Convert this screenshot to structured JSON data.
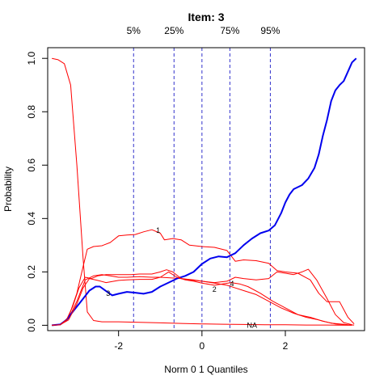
{
  "chart_data": {
    "type": "line",
    "title": "Item:  3",
    "xlabel": "Norm 0 1 Quantiles",
    "ylabel": "Probability",
    "xlim": [
      -3.7,
      3.9
    ],
    "ylim": [
      -0.02,
      1.04
    ],
    "xticks": [
      -2,
      0,
      2
    ],
    "yticks": [
      0.0,
      0.2,
      0.4,
      0.6,
      0.8,
      1.0
    ],
    "grid": false,
    "quantile_lines": [
      {
        "label": "5%",
        "x": -1.64,
        "color": "#3333cc"
      },
      {
        "label": "25%",
        "x": -0.67,
        "color": "#3333cc"
      },
      {
        "label": "",
        "x": 0.0,
        "color": "#3333cc"
      },
      {
        "label": "75%",
        "x": 0.67,
        "color": "#3333cc"
      },
      {
        "label": "95%",
        "x": 1.64,
        "color": "#3333cc"
      }
    ],
    "series": [
      {
        "label": "NA",
        "label_pos": [
          1.2,
          0.0
        ],
        "color": "#ff0000",
        "width": 1,
        "points": [
          [
            -3.6,
            1.0
          ],
          [
            -3.45,
            0.995
          ],
          [
            -3.3,
            0.98
          ],
          [
            -3.15,
            0.9
          ],
          [
            -3.0,
            0.6
          ],
          [
            -2.85,
            0.25
          ],
          [
            -2.75,
            0.05
          ],
          [
            -2.6,
            0.018
          ],
          [
            -2.4,
            0.013
          ],
          [
            -2.0,
            0.013
          ],
          [
            -1.5,
            0.011
          ],
          [
            -1.0,
            0.009
          ],
          [
            -0.5,
            0.007
          ],
          [
            0.0,
            0.005
          ],
          [
            0.5,
            0.004
          ],
          [
            1.0,
            0.003
          ],
          [
            1.5,
            0.002
          ],
          [
            2.0,
            0.002
          ],
          [
            2.5,
            0.001
          ],
          [
            3.0,
            0.001
          ],
          [
            3.6,
            0.0
          ]
        ]
      },
      {
        "label": "1",
        "label_pos": [
          -1.05,
          0.355
        ],
        "color": "#ff0000",
        "width": 1,
        "points": [
          [
            -3.6,
            0.0
          ],
          [
            -3.4,
            0.002
          ],
          [
            -3.2,
            0.03
          ],
          [
            -3.0,
            0.12
          ],
          [
            -2.85,
            0.22
          ],
          [
            -2.75,
            0.285
          ],
          [
            -2.6,
            0.295
          ],
          [
            -2.4,
            0.298
          ],
          [
            -2.2,
            0.31
          ],
          [
            -2.0,
            0.335
          ],
          [
            -1.8,
            0.338
          ],
          [
            -1.6,
            0.34
          ],
          [
            -1.4,
            0.35
          ],
          [
            -1.2,
            0.358
          ],
          [
            -1.0,
            0.345
          ],
          [
            -0.9,
            0.32
          ],
          [
            -0.7,
            0.325
          ],
          [
            -0.5,
            0.32
          ],
          [
            -0.3,
            0.3
          ],
          [
            0.0,
            0.295
          ],
          [
            0.3,
            0.292
          ],
          [
            0.6,
            0.28
          ],
          [
            0.8,
            0.24
          ],
          [
            1.0,
            0.245
          ],
          [
            1.3,
            0.242
          ],
          [
            1.6,
            0.232
          ],
          [
            1.8,
            0.205
          ],
          [
            2.0,
            0.2
          ],
          [
            2.3,
            0.195
          ],
          [
            2.6,
            0.17
          ],
          [
            2.8,
            0.12
          ],
          [
            3.0,
            0.088
          ],
          [
            3.3,
            0.088
          ],
          [
            3.5,
            0.03
          ],
          [
            3.65,
            0.005
          ]
        ]
      },
      {
        "label": "2",
        "label_pos": [
          0.3,
          0.135
        ],
        "color": "#ff0000",
        "width": 1,
        "points": [
          [
            -3.6,
            0.0
          ],
          [
            -3.4,
            0.002
          ],
          [
            -3.2,
            0.025
          ],
          [
            -3.0,
            0.09
          ],
          [
            -2.8,
            0.17
          ],
          [
            -2.6,
            0.185
          ],
          [
            -2.4,
            0.19
          ],
          [
            -2.2,
            0.185
          ],
          [
            -2.0,
            0.18
          ],
          [
            -1.8,
            0.18
          ],
          [
            -1.5,
            0.182
          ],
          [
            -1.2,
            0.18
          ],
          [
            -1.0,
            0.18
          ],
          [
            -0.8,
            0.178
          ],
          [
            -0.5,
            0.175
          ],
          [
            -0.2,
            0.17
          ],
          [
            0.0,
            0.165
          ],
          [
            0.3,
            0.158
          ],
          [
            0.6,
            0.15
          ],
          [
            0.8,
            0.14
          ],
          [
            1.0,
            0.13
          ],
          [
            1.3,
            0.115
          ],
          [
            1.6,
            0.09
          ],
          [
            1.9,
            0.065
          ],
          [
            2.2,
            0.045
          ],
          [
            2.5,
            0.03
          ],
          [
            2.8,
            0.02
          ],
          [
            3.1,
            0.008
          ],
          [
            3.5,
            0.002
          ],
          [
            3.65,
            0.001
          ]
        ]
      },
      {
        "label": "3",
        "label_pos": [
          -2.25,
          0.12
        ],
        "color": "#0000ee",
        "width": 2,
        "points": [
          [
            -3.6,
            0.0
          ],
          [
            -3.4,
            0.003
          ],
          [
            -3.25,
            0.02
          ],
          [
            -3.1,
            0.05
          ],
          [
            -2.9,
            0.09
          ],
          [
            -2.7,
            0.13
          ],
          [
            -2.55,
            0.145
          ],
          [
            -2.45,
            0.145
          ],
          [
            -2.3,
            0.128
          ],
          [
            -2.15,
            0.112
          ],
          [
            -2.0,
            0.118
          ],
          [
            -1.8,
            0.125
          ],
          [
            -1.6,
            0.122
          ],
          [
            -1.4,
            0.118
          ],
          [
            -1.2,
            0.125
          ],
          [
            -1.0,
            0.145
          ],
          [
            -0.8,
            0.16
          ],
          [
            -0.6,
            0.175
          ],
          [
            -0.4,
            0.185
          ],
          [
            -0.2,
            0.2
          ],
          [
            0.0,
            0.23
          ],
          [
            0.2,
            0.25
          ],
          [
            0.4,
            0.258
          ],
          [
            0.6,
            0.255
          ],
          [
            0.8,
            0.27
          ],
          [
            1.0,
            0.3
          ],
          [
            1.2,
            0.325
          ],
          [
            1.4,
            0.345
          ],
          [
            1.6,
            0.355
          ],
          [
            1.75,
            0.375
          ],
          [
            1.9,
            0.42
          ],
          [
            2.0,
            0.46
          ],
          [
            2.1,
            0.49
          ],
          [
            2.2,
            0.51
          ],
          [
            2.4,
            0.525
          ],
          [
            2.55,
            0.55
          ],
          [
            2.7,
            0.59
          ],
          [
            2.8,
            0.64
          ],
          [
            2.9,
            0.71
          ],
          [
            3.0,
            0.77
          ],
          [
            3.1,
            0.84
          ],
          [
            3.2,
            0.88
          ],
          [
            3.3,
            0.9
          ],
          [
            3.4,
            0.915
          ],
          [
            3.5,
            0.95
          ],
          [
            3.6,
            0.985
          ],
          [
            3.7,
            1.0
          ]
        ]
      },
      {
        "label": "4",
        "label_pos": [
          0.72,
          0.155
        ],
        "color": "#ff0000",
        "width": 1,
        "points": [
          [
            -3.6,
            0.0
          ],
          [
            -3.4,
            0.002
          ],
          [
            -3.2,
            0.02
          ],
          [
            -3.0,
            0.08
          ],
          [
            -2.85,
            0.14
          ],
          [
            -2.7,
            0.175
          ],
          [
            -2.5,
            0.168
          ],
          [
            -2.3,
            0.16
          ],
          [
            -2.0,
            0.168
          ],
          [
            -1.8,
            0.17
          ],
          [
            -1.5,
            0.172
          ],
          [
            -1.2,
            0.172
          ],
          [
            -1.0,
            0.18
          ],
          [
            -0.8,
            0.2
          ],
          [
            -0.6,
            0.18
          ],
          [
            -0.4,
            0.17
          ],
          [
            -0.2,
            0.165
          ],
          [
            0.0,
            0.158
          ],
          [
            0.3,
            0.15
          ],
          [
            0.5,
            0.155
          ],
          [
            0.7,
            0.16
          ],
          [
            0.9,
            0.155
          ],
          [
            1.1,
            0.145
          ],
          [
            1.4,
            0.12
          ],
          [
            1.7,
            0.09
          ],
          [
            2.0,
            0.065
          ],
          [
            2.3,
            0.04
          ],
          [
            2.6,
            0.03
          ],
          [
            2.9,
            0.015
          ],
          [
            3.2,
            0.005
          ],
          [
            3.5,
            0.001
          ]
        ]
      },
      {
        "label": "",
        "label_pos": null,
        "color": "#ff0000",
        "width": 1,
        "points": [
          [
            -3.6,
            0.0
          ],
          [
            -3.4,
            0.002
          ],
          [
            -3.25,
            0.02
          ],
          [
            -3.1,
            0.07
          ],
          [
            -2.95,
            0.14
          ],
          [
            -2.8,
            0.18
          ],
          [
            -2.65,
            0.175
          ],
          [
            -2.5,
            0.185
          ],
          [
            -2.3,
            0.19
          ],
          [
            -2.0,
            0.19
          ],
          [
            -1.7,
            0.19
          ],
          [
            -1.5,
            0.192
          ],
          [
            -1.2,
            0.192
          ],
          [
            -1.0,
            0.2
          ],
          [
            -0.85,
            0.208
          ],
          [
            -0.7,
            0.2
          ],
          [
            -0.5,
            0.175
          ],
          [
            -0.3,
            0.17
          ],
          [
            0.0,
            0.165
          ],
          [
            0.3,
            0.16
          ],
          [
            0.6,
            0.165
          ],
          [
            0.8,
            0.18
          ],
          [
            1.0,
            0.175
          ],
          [
            1.3,
            0.17
          ],
          [
            1.6,
            0.175
          ],
          [
            1.8,
            0.2
          ],
          [
            2.0,
            0.195
          ],
          [
            2.2,
            0.19
          ],
          [
            2.4,
            0.2
          ],
          [
            2.55,
            0.21
          ],
          [
            2.75,
            0.17
          ],
          [
            3.0,
            0.1
          ],
          [
            3.2,
            0.04
          ],
          [
            3.4,
            0.01
          ],
          [
            3.6,
            0.002
          ]
        ]
      }
    ]
  }
}
